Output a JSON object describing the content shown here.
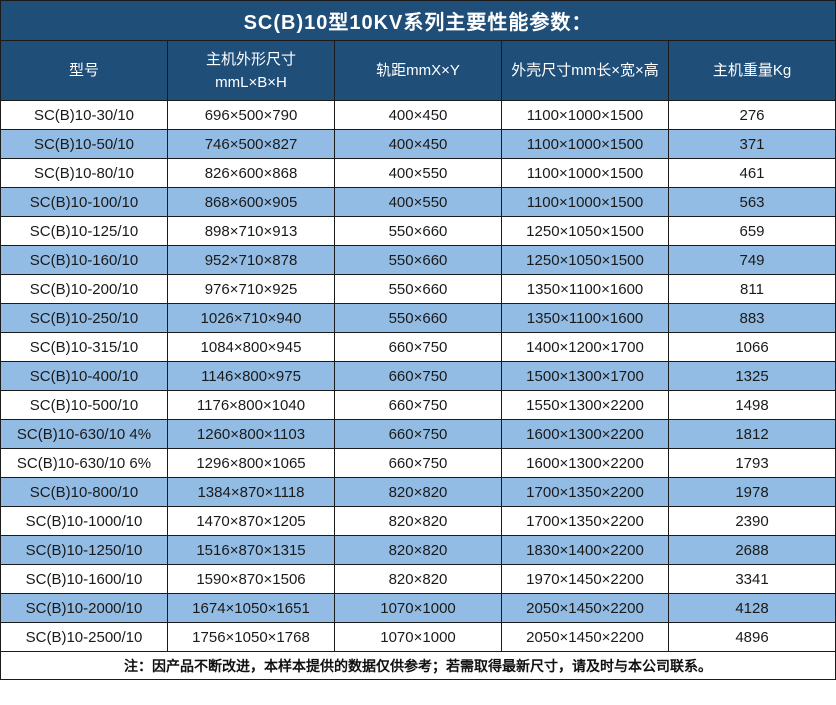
{
  "title": "SC(B)10型10KV系列主要性能参数：",
  "colors": {
    "header_bg": "#1F4E79",
    "alt_row_bg": "#92BCE4",
    "border": "#1b1b1b",
    "header_text": "#ffffff",
    "body_text": "#1a1a1a"
  },
  "table": {
    "columns": [
      {
        "label": "型号",
        "sublabel": ""
      },
      {
        "label": "主机外形尺寸",
        "sublabel": "mmL×B×H"
      },
      {
        "label": "轨距mmX×Y",
        "sublabel": ""
      },
      {
        "label": "外壳尺寸mm长×宽×高",
        "sublabel": ""
      },
      {
        "label": "主机重量Kg",
        "sublabel": ""
      }
    ],
    "rows": [
      [
        "SC(B)10-30/10",
        "696×500×790",
        "400×450",
        "1100×1000×1500",
        "276"
      ],
      [
        "SC(B)10-50/10",
        "746×500×827",
        "400×450",
        "1100×1000×1500",
        "371"
      ],
      [
        "SC(B)10-80/10",
        "826×600×868",
        "400×550",
        "1100×1000×1500",
        "461"
      ],
      [
        "SC(B)10-100/10",
        "868×600×905",
        "400×550",
        "1100×1000×1500",
        "563"
      ],
      [
        "SC(B)10-125/10",
        "898×710×913",
        "550×660",
        "1250×1050×1500",
        "659"
      ],
      [
        "SC(B)10-160/10",
        "952×710×878",
        "550×660",
        "1250×1050×1500",
        "749"
      ],
      [
        "SC(B)10-200/10",
        "976×710×925",
        "550×660",
        "1350×1100×1600",
        "811"
      ],
      [
        "SC(B)10-250/10",
        "1026×710×940",
        "550×660",
        "1350×1100×1600",
        "883"
      ],
      [
        "SC(B)10-315/10",
        "1084×800×945",
        "660×750",
        "1400×1200×1700",
        "1066"
      ],
      [
        "SC(B)10-400/10",
        "1146×800×975",
        "660×750",
        "1500×1300×1700",
        "1325"
      ],
      [
        "SC(B)10-500/10",
        "1176×800×1040",
        "660×750",
        "1550×1300×2200",
        "1498"
      ],
      [
        "SC(B)10-630/10 4%",
        "1260×800×1103",
        "660×750",
        "1600×1300×2200",
        "1812"
      ],
      [
        "SC(B)10-630/10 6%",
        "1296×800×1065",
        "660×750",
        "1600×1300×2200",
        "1793"
      ],
      [
        "SC(B)10-800/10",
        "1384×870×1118",
        "820×820",
        "1700×1350×2200",
        "1978"
      ],
      [
        "SC(B)10-1000/10",
        "1470×870×1205",
        "820×820",
        "1700×1350×2200",
        "2390"
      ],
      [
        "SC(B)10-1250/10",
        "1516×870×1315",
        "820×820",
        "1830×1400×2200",
        "2688"
      ],
      [
        "SC(B)10-1600/10",
        "1590×870×1506",
        "820×820",
        "1970×1450×2200",
        "3341"
      ],
      [
        "SC(B)10-2000/10",
        "1674×1050×1651",
        "1070×1000",
        "2050×1450×2200",
        "4128"
      ],
      [
        "SC(B)10-2500/10",
        "1756×1050×1768",
        "1070×1000",
        "2050×1450×2200",
        "4896"
      ]
    ]
  },
  "note": "注：因产品不断改进，本样本提供的数据仅供参考；若需取得最新尺寸，请及时与本公司联系。"
}
